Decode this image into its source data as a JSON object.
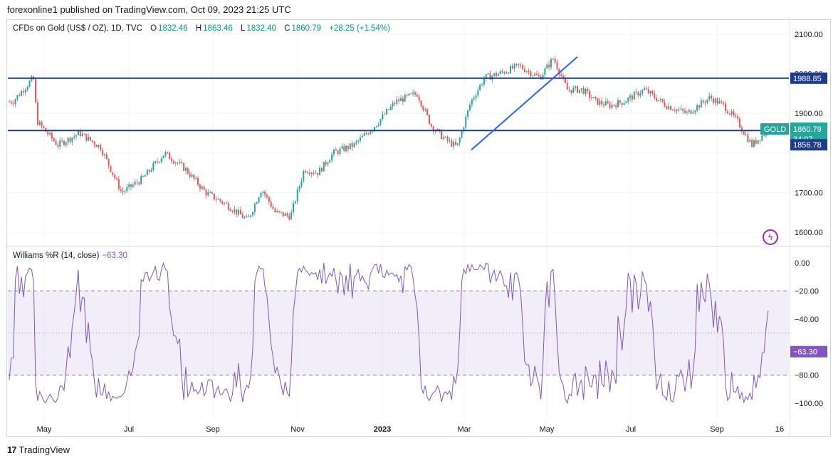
{
  "header": {
    "published": "forexonline1 published on TradingView.com, Oct 09, 2023 21:25 UTC"
  },
  "legend": {
    "symbol": "CFDs on Gold (US$ / OZ), 1D, TVC",
    "open_label": "O",
    "open": "1832.46",
    "high_label": "H",
    "high": "1863.46",
    "low_label": "L",
    "low": "1832.40",
    "close_label": "C",
    "close": "1860.79",
    "change": "+28.25 (+1.54%)"
  },
  "indicator": {
    "name": "Williams %R (14, close)",
    "value": "−63.30"
  },
  "footer": {
    "logo": "17",
    "brand": "TradingView"
  },
  "icons": {
    "alert": "lightning-icon",
    "brand_logo": "tradingview-logo-icon"
  },
  "colors": {
    "up": "#26a69a",
    "down": "#ef5350",
    "line": "#2962ff",
    "wr": "#7e57c2",
    "level_line": "#1e3c8c"
  },
  "chart_data": [
    {
      "type": "candlestick",
      "symbol": "GOLD",
      "ylim": [
        1570,
        2130
      ],
      "y_ticks": [
        "2100.00",
        "2000.00",
        "1900.00",
        "1700.00",
        "1600.00"
      ],
      "x_tick_labels": [
        "May",
        "Jul",
        "Sep",
        "Nov",
        "2023",
        "Mar",
        "May",
        "Jul",
        "Sep",
        "16"
      ],
      "price_labels": [
        {
          "text": "1988.85",
          "value": 1988.85,
          "kind": "level"
        },
        {
          "text": "GOLD",
          "kind": "symbol"
        },
        {
          "text": "1860.79",
          "value": 1860.79,
          "kind": "last"
        },
        {
          "text": "34:07",
          "kind": "countdown"
        },
        {
          "text": "1856.78",
          "value": 1856.78,
          "kind": "level"
        }
      ],
      "horizontal_levels": [
        1988.85,
        1856.78
      ],
      "trendline": {
        "from": [
          "Mar 2023",
          1808
        ],
        "to": [
          "May 2023",
          2043
        ]
      },
      "trend_anchors": [
        [
          "Apr 2022",
          1930
        ],
        [
          "Apr 2022",
          1990
        ],
        [
          "May 2022",
          1880
        ],
        [
          "May 2022",
          1820
        ],
        [
          "Jun 2022",
          1850
        ],
        [
          "Jun 2022",
          1815
        ],
        [
          "Jul 2022",
          1700
        ],
        [
          "Jul 2022",
          1735
        ],
        [
          "Aug 2022",
          1800
        ],
        [
          "Aug 2022",
          1760
        ],
        [
          "Sep 2022",
          1700
        ],
        [
          "Sep 2022",
          1670
        ],
        [
          "Oct 2022",
          1630
        ],
        [
          "Oct 2022",
          1710
        ],
        [
          "Oct 2022",
          1650
        ],
        [
          "Nov 2022",
          1640
        ],
        [
          "Nov 2022",
          1760
        ],
        [
          "Nov 2022",
          1750
        ],
        [
          "Dec 2022",
          1800
        ],
        [
          "Dec 2022",
          1820
        ],
        [
          "Jan 2023",
          1870
        ],
        [
          "Jan 2023",
          1930
        ],
        [
          "Feb 2023",
          1950
        ],
        [
          "Feb 2023",
          1870
        ],
        [
          "Feb 2023",
          1835
        ],
        [
          "Mar 2023",
          1815
        ],
        [
          "Mar 2023",
          1930
        ],
        [
          "Mar 2023",
          1990
        ],
        [
          "Apr 2023",
          2000
        ],
        [
          "Apr 2023",
          2020
        ],
        [
          "May 2023",
          1990
        ],
        [
          "May 2023",
          2040
        ],
        [
          "May 2023",
          1960
        ],
        [
          "Jun 2023",
          1960
        ],
        [
          "Jun 2023",
          1930
        ],
        [
          "Jun 2023",
          1920
        ],
        [
          "Jul 2023",
          1930
        ],
        [
          "Jul 2023",
          1960
        ],
        [
          "Aug 2023",
          1920
        ],
        [
          "Aug 2023",
          1900
        ],
        [
          "Sep 2023",
          1940
        ],
        [
          "Sep 2023",
          1920
        ],
        [
          "Sep 2023",
          1880
        ],
        [
          "Oct 2023",
          1820
        ],
        [
          "Oct 2023",
          1860
        ]
      ]
    },
    {
      "type": "line",
      "name": "Williams %R (14, close)",
      "ylim": [
        -105,
        5
      ],
      "y_ticks": [
        "0.00",
        "−20.00",
        "−40.00",
        "−80.00",
        "−100.00"
      ],
      "bands": [
        -20,
        -50,
        -80
      ],
      "last_value": -63.3,
      "last_label": "−63.30"
    }
  ]
}
